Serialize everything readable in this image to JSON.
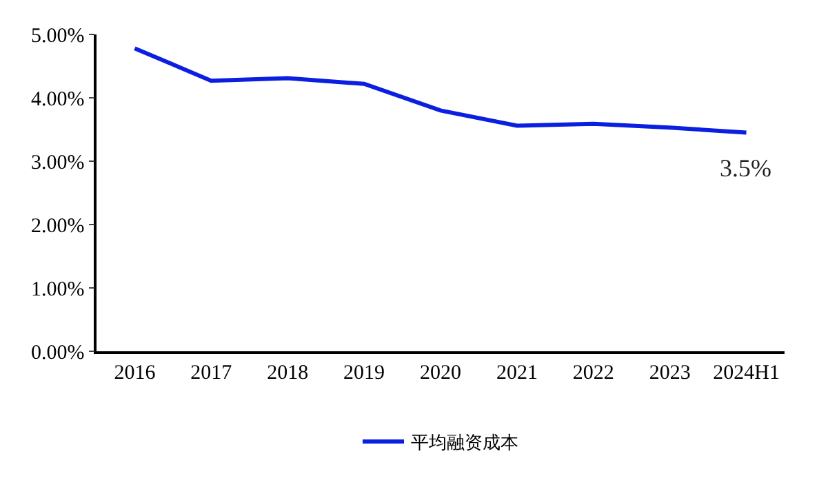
{
  "chart_data": {
    "type": "line",
    "categories": [
      "2016",
      "2017",
      "2018",
      "2019",
      "2020",
      "2021",
      "2022",
      "2023",
      "2024H1"
    ],
    "series": [
      {
        "name": "平均融资成本",
        "color": "#0a1fe0",
        "values": [
          4.78,
          4.27,
          4.31,
          4.22,
          3.8,
          3.56,
          3.59,
          3.53,
          3.45
        ]
      }
    ],
    "ylim": [
      0,
      5
    ],
    "yticks": [
      {
        "value": 0,
        "label": "0.00%"
      },
      {
        "value": 1,
        "label": "1.00%"
      },
      {
        "value": 2,
        "label": "2.00%"
      },
      {
        "value": 3,
        "label": "3.00%"
      },
      {
        "value": 4,
        "label": "4.00%"
      },
      {
        "value": 5,
        "label": "5.00%"
      }
    ],
    "annotations": [
      {
        "text": "3.5%",
        "x": "2024H1",
        "y": 3.45
      }
    ],
    "legend": "bottom",
    "marker": "none",
    "line_style": "solid"
  }
}
